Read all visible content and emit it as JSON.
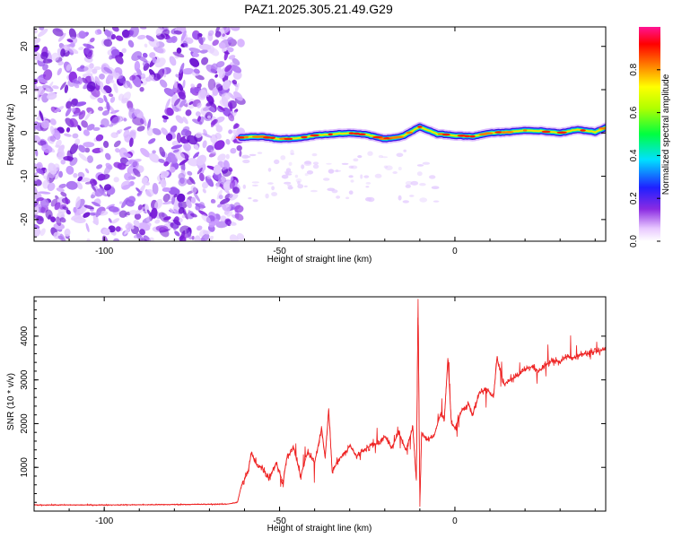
{
  "title": "PAZ1.2025.305.21.49.G29",
  "colors": {
    "snr_line": "#ee2222",
    "noise_purple": "#8a2be2",
    "axis": "#000000",
    "background": "#ffffff"
  },
  "chart_data": [
    {
      "type": "heatmap",
      "name": "spectrogram",
      "xlabel": "Height of straight line (km)",
      "ylabel": "Frequency (Hz)",
      "xlim": [
        -120,
        43
      ],
      "ylim": [
        -25,
        24.5
      ],
      "xticks": [
        -100,
        -50,
        0
      ],
      "yticks": [
        -20,
        -10,
        0,
        10,
        20
      ],
      "xtick_labels": [
        "-100",
        "-50",
        "0"
      ],
      "ytick_labels": [
        "-20",
        "-10",
        "0",
        "10",
        "20"
      ],
      "noise_region_x": [
        -120,
        -61
      ],
      "signal_start_x": -61,
      "ridge_x": [
        -61,
        -55,
        -50,
        -45,
        -40,
        -35,
        -30,
        -25,
        -20,
        -15,
        -12,
        -10,
        -5,
        0,
        5,
        10,
        15,
        20,
        25,
        30,
        35,
        40,
        43
      ],
      "ridge_freq": [
        -1.0,
        -0.8,
        -1.4,
        -1.2,
        -0.6,
        -0.3,
        0.0,
        -0.4,
        -1.4,
        -0.8,
        0.6,
        1.4,
        -0.2,
        -0.6,
        -0.8,
        0.0,
        0.2,
        0.6,
        0.4,
        0.0,
        0.8,
        0.2,
        1.2
      ],
      "colorbar": {
        "label": "Normalized spectral amplitude",
        "range": [
          0.0,
          1.0
        ],
        "ticks": [
          0.0,
          0.2,
          0.4,
          0.6,
          0.8
        ],
        "tick_labels": [
          "0.0",
          "0.2",
          "0.4",
          "0.6",
          "0.8"
        ]
      }
    },
    {
      "type": "line",
      "name": "snr",
      "xlabel": "Height of straight line (km)",
      "ylabel": "SNR (10 * v/v)",
      "xlim": [
        -120,
        43
      ],
      "ylim": [
        0,
        4900
      ],
      "xticks": [
        -100,
        -50,
        0
      ],
      "yticks": [
        1000,
        2000,
        3000,
        4000
      ],
      "xtick_labels": [
        "-100",
        "-50",
        "0"
      ],
      "ytick_labels": [
        "1000",
        "2000",
        "3000",
        "4000"
      ],
      "series": [
        {
          "name": "SNR",
          "x": [
            -120,
            -100,
            -80,
            -65,
            -62,
            -61,
            -59,
            -58,
            -57,
            -55,
            -53,
            -51,
            -49,
            -48,
            -46,
            -44,
            -42,
            -40,
            -38,
            -37,
            -36,
            -35,
            -33,
            -31,
            -30,
            -28,
            -26,
            -24,
            -22,
            -20,
            -18,
            -16,
            -14,
            -12,
            -11,
            -10.5,
            -10,
            -9.5,
            -8,
            -6,
            -4,
            -3,
            -2,
            -1,
            0,
            2,
            4,
            5,
            7,
            9,
            11,
            12,
            14,
            16,
            18,
            20,
            22,
            24,
            26,
            28,
            30,
            32,
            34,
            36,
            38,
            40,
            43
          ],
          "y": [
            140,
            140,
            150,
            160,
            200,
            550,
            900,
            1350,
            1100,
            1000,
            750,
            1100,
            650,
            1200,
            1450,
            800,
            1350,
            1100,
            1900,
            1200,
            2350,
            900,
            1200,
            1350,
            1500,
            1250,
            1400,
            1500,
            1550,
            1700,
            1450,
            1800,
            1400,
            1900,
            700,
            4850,
            100,
            1800,
            1650,
            1700,
            2250,
            2100,
            3500,
            2000,
            1900,
            2300,
            2450,
            2200,
            2700,
            2800,
            2600,
            3500,
            2900,
            3000,
            3100,
            3250,
            3300,
            3200,
            3350,
            3450,
            3400,
            3550,
            3500,
            3600,
            3600,
            3650,
            3700
          ]
        }
      ]
    }
  ]
}
